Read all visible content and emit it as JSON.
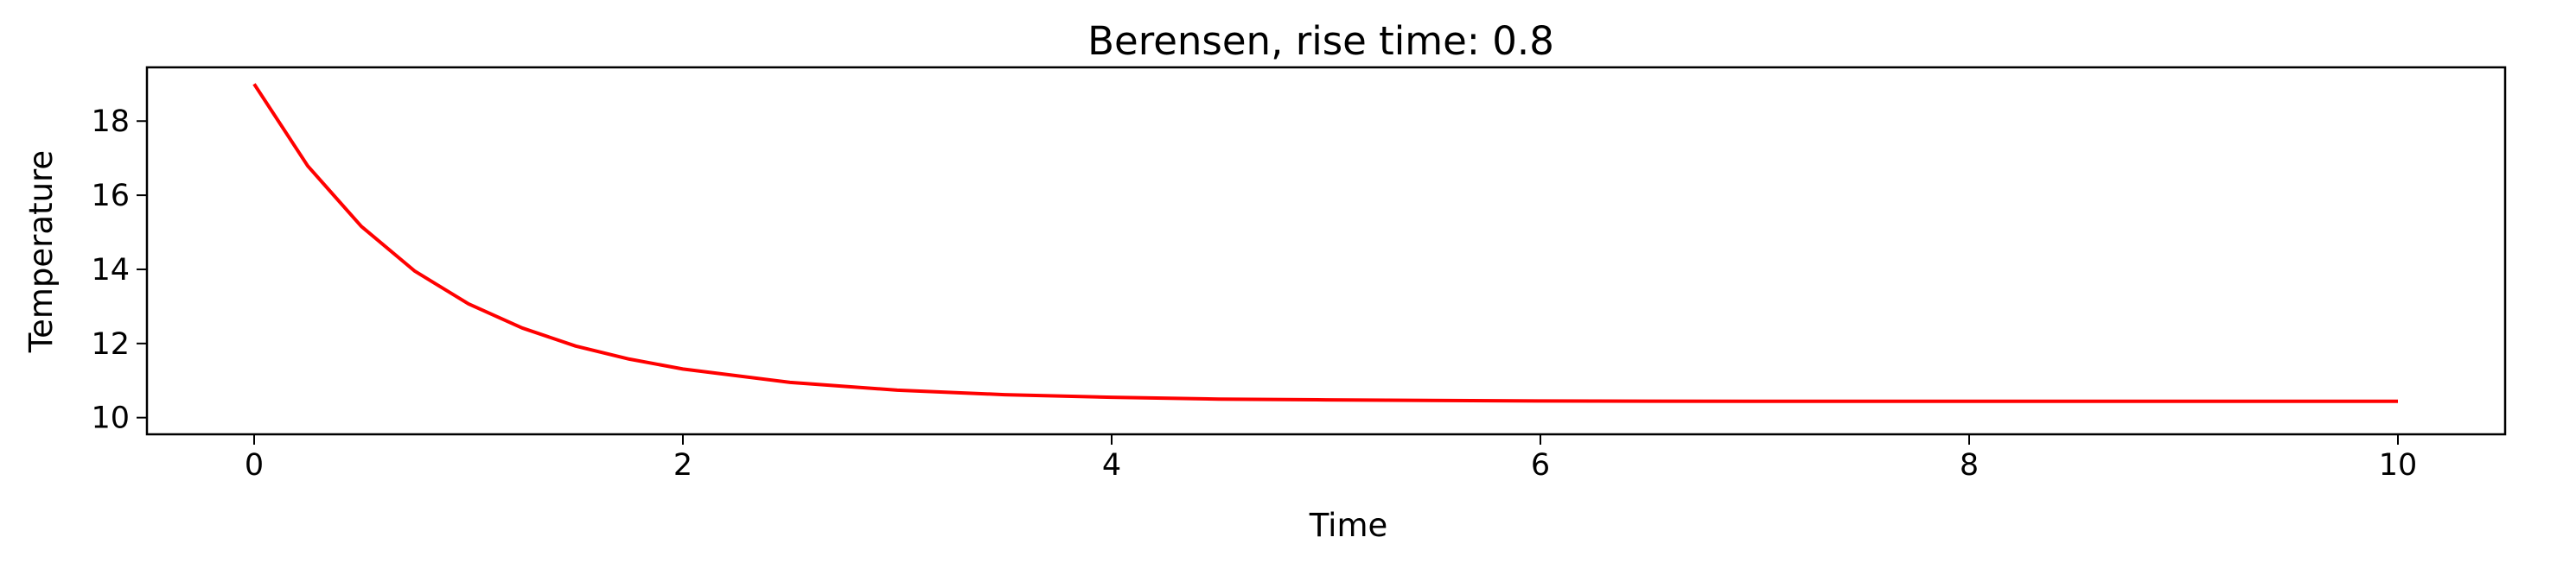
{
  "chart_data": {
    "type": "line",
    "title": "Berensen, rise time: 0.8",
    "xlabel": "Time",
    "ylabel": "Temperature",
    "xlim": [
      -0.5,
      10.5
    ],
    "ylim": [
      9.55,
      19.45
    ],
    "xticks": [
      0,
      2,
      4,
      6,
      8,
      10
    ],
    "yticks": [
      10,
      12,
      14,
      16,
      18
    ],
    "grid": false,
    "line_color": "#ff0000",
    "series": [
      {
        "x": [
          0,
          0.25,
          0.5,
          0.75,
          1,
          1.25,
          1.5,
          1.75,
          2,
          2.5,
          3,
          3.5,
          4,
          4.5,
          5,
          6,
          7,
          8,
          9,
          10
        ],
        "values": [
          19.0,
          16.79,
          15.16,
          13.95,
          13.07,
          12.42,
          11.93,
          11.58,
          11.31,
          10.95,
          10.74,
          10.62,
          10.55,
          10.5,
          10.48,
          10.45,
          10.44,
          10.44,
          10.44,
          10.44
        ]
      }
    ]
  }
}
